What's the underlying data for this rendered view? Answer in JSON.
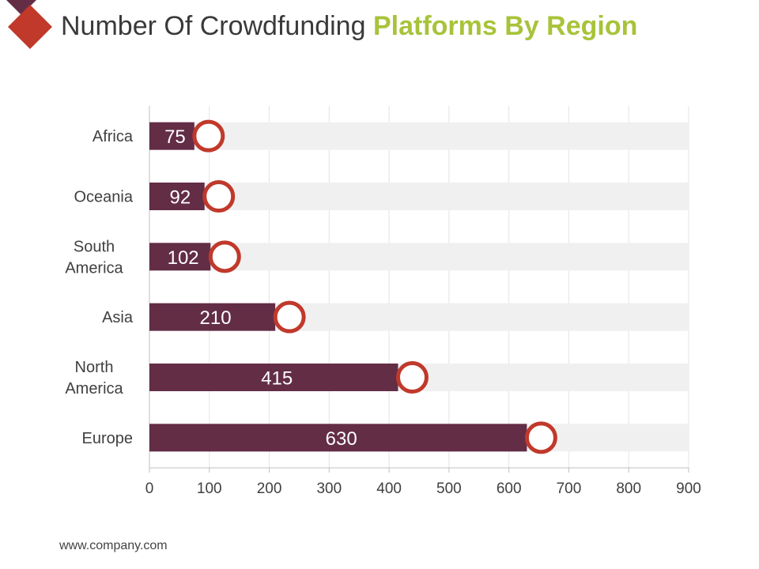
{
  "title": {
    "part1": "Number Of Crowdfunding",
    "part2": "Platforms By Region"
  },
  "footer": {
    "url": "www.company.com"
  },
  "colors": {
    "bar": "#632d46",
    "track": "#f0f0f0",
    "marker": "#c0392b",
    "logo_primary": "#c0392b",
    "logo_secondary": "#632d46",
    "accent": "#a8c33a"
  },
  "chart_data": {
    "type": "bar",
    "orientation": "horizontal",
    "title": "Number Of Crowdfunding Platforms By Region",
    "categories": [
      "Africa",
      "Oceania",
      "South America",
      "Asia",
      "North America",
      "Europe"
    ],
    "category_lines": [
      [
        "Africa"
      ],
      [
        "Oceania"
      ],
      [
        "South",
        "America"
      ],
      [
        "Asia"
      ],
      [
        "North",
        "America"
      ],
      [
        "Europe"
      ]
    ],
    "values": [
      75,
      92,
      102,
      210,
      415,
      630
    ],
    "xlim": [
      0,
      900
    ],
    "xticks": [
      0,
      100,
      200,
      300,
      400,
      500,
      600,
      700,
      800,
      900
    ],
    "grid": true,
    "xlabel": "",
    "ylabel": ""
  }
}
